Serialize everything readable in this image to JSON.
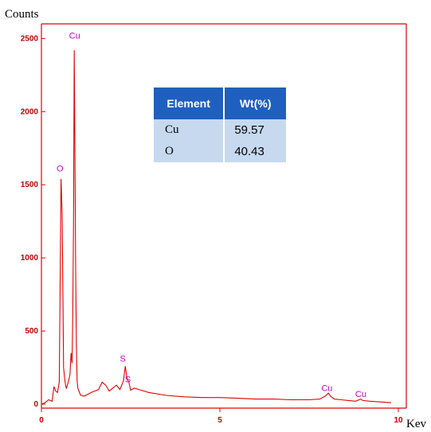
{
  "chart_data": {
    "type": "line",
    "ylabel": "Counts",
    "xlabel": "Kev",
    "xlim": [
      0,
      10
    ],
    "ylim": [
      0,
      2600
    ],
    "xticks": [
      "0",
      "5",
      "10"
    ],
    "yticks": [
      "0",
      "500",
      "1000",
      "1500",
      "2000",
      "2500"
    ],
    "line_color": "#e00000",
    "series": [
      {
        "x": [
          0.0,
          0.1,
          0.2,
          0.3,
          0.35,
          0.4,
          0.45,
          0.5,
          0.52,
          0.55,
          0.58,
          0.6,
          0.62,
          0.65,
          0.68,
          0.7,
          0.75,
          0.8,
          0.83,
          0.86,
          0.88,
          0.9,
          0.92,
          0.94,
          0.96,
          0.98,
          1.0,
          1.02,
          1.05,
          1.1,
          1.2,
          1.4,
          1.6,
          1.7,
          1.8,
          1.9,
          2.0,
          2.1,
          2.2,
          2.3,
          2.35,
          2.4,
          2.45,
          2.5,
          2.6,
          2.8,
          3.0,
          3.5,
          4.0,
          4.5,
          5.0,
          5.5,
          6.0,
          6.5,
          7.0,
          7.5,
          7.8,
          7.95,
          8.04,
          8.1,
          8.2,
          8.4,
          8.6,
          8.8,
          8.9,
          8.95,
          9.0,
          9.2,
          9.5,
          9.8
        ],
        "y": [
          0,
          10,
          30,
          20,
          120,
          90,
          80,
          150,
          700,
          1540,
          1300,
          800,
          250,
          180,
          120,
          110,
          150,
          200,
          350,
          280,
          650,
          1250,
          2420,
          1700,
          900,
          400,
          160,
          110,
          90,
          60,
          55,
          80,
          100,
          150,
          130,
          90,
          110,
          130,
          100,
          160,
          260,
          170,
          150,
          95,
          110,
          95,
          80,
          60,
          50,
          45,
          45,
          40,
          35,
          35,
          30,
          30,
          35,
          55,
          75,
          55,
          35,
          30,
          25,
          20,
          30,
          35,
          25,
          20,
          15,
          10
        ]
      }
    ],
    "annotations": [
      {
        "text": "Cu",
        "x": 0.93,
        "y": 2500
      },
      {
        "text": "O",
        "x": 0.52,
        "y": 1590
      },
      {
        "text": "S",
        "x": 2.28,
        "y": 290
      },
      {
        "text": "S",
        "x": 2.42,
        "y": 150
      },
      {
        "text": "Cu",
        "x": 8.0,
        "y": 90
      },
      {
        "text": "Cu",
        "x": 8.95,
        "y": 50
      }
    ]
  },
  "table": {
    "headers": [
      "Element",
      "Wt(%)"
    ],
    "rows": [
      [
        "Cu",
        "59.57"
      ],
      [
        "O",
        "40.43"
      ]
    ]
  }
}
